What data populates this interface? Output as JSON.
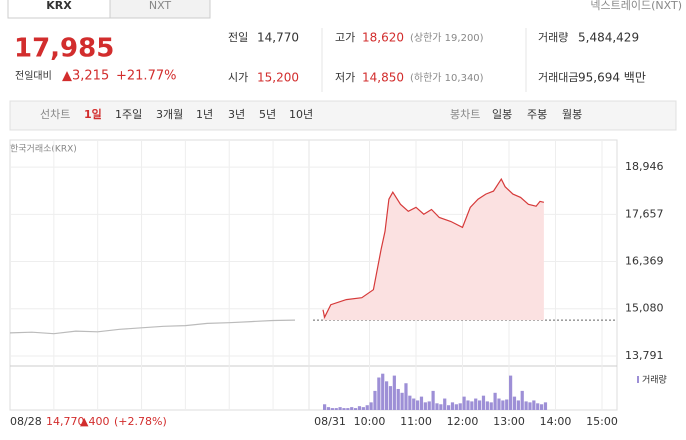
{
  "tabs": [
    "KRX",
    "NXT"
  ],
  "nxt_link": "넥스트레이드(NXT)",
  "quote": {
    "price": "17,985",
    "change_label": "전일대비",
    "change": "▲3,215",
    "rate": "+21.77%"
  },
  "table": {
    "rows": [
      [
        [
          "전일",
          "14,770",
          ""
        ],
        [
          "고가",
          "18,620",
          "(상한가 19,200)"
        ],
        [
          "거래량",
          "5,484,429",
          ""
        ]
      ],
      [
        [
          "시가",
          "15,200",
          ""
        ],
        [
          "저가",
          "14,850",
          "(하한가 10,340)"
        ],
        [
          "거래대금",
          "95,694 백만",
          ""
        ]
      ]
    ]
  },
  "toolbar": {
    "line_chart": "선차트",
    "periods": [
      "1일",
      "1주일",
      "3개월",
      "1년",
      "3년",
      "5년",
      "10년"
    ],
    "candle_chart": "봉차트",
    "candles": [
      "일봉",
      "주봉",
      "월봉"
    ]
  },
  "footer": {
    "close": "14,770",
    "change": "▲400",
    "rate": "(+2.78%)"
  },
  "chart_data": {
    "type": "line",
    "source": "한국거래소(KRX)",
    "x_dates": [
      "08/28",
      "08/31"
    ],
    "xticks": [
      "10:00",
      "11:00",
      "12:00",
      "13:00",
      "14:00",
      "15:00"
    ],
    "ylim": [
      13517,
      19686
    ],
    "yticks": [
      {
        "value": 13791,
        "label": "13,791"
      },
      {
        "value": 15080,
        "label": "15,080"
      },
      {
        "value": 16369,
        "label": "16,369"
      },
      {
        "value": 17657,
        "label": "17,657"
      },
      {
        "value": 18946,
        "label": "18,946"
      }
    ],
    "baseline": 14770,
    "grid": true,
    "series": [
      {
        "color": "#bbbbbb",
        "x": [
          "09:00",
          "09:30",
          "10:00",
          "10:30",
          "11:00",
          "11:30",
          "12:00",
          "12:30",
          "13:00",
          "13:30",
          "14:00",
          "14:30",
          "15:00",
          "15:30"
        ],
        "values": [
          14420,
          14440,
          14400,
          14470,
          14450,
          14520,
          14560,
          14600,
          14620,
          14680,
          14700,
          14730,
          14760,
          14770
        ]
      },
      {
        "color": "#d63a3a",
        "x": [
          "09:00",
          "09:02",
          "09:10",
          "09:30",
          "09:50",
          "10:05",
          "10:15",
          "10:20",
          "10:25",
          "10:30",
          "10:40",
          "10:50",
          "11:00",
          "11:10",
          "11:20",
          "11:30",
          "11:45",
          "12:00",
          "12:10",
          "12:20",
          "12:30",
          "12:40",
          "12:50",
          "12:55",
          "13:05",
          "13:15",
          "13:25",
          "13:35",
          "13:40",
          "13:45"
        ],
        "values": [
          15050,
          14850,
          15190,
          15330,
          15380,
          15600,
          16700,
          17190,
          18070,
          18260,
          17930,
          17740,
          17850,
          17660,
          17790,
          17570,
          17460,
          17300,
          17850,
          18070,
          18210,
          18290,
          18620,
          18410,
          18210,
          18120,
          17930,
          17880,
          18010,
          17985
        ]
      }
    ],
    "volume": {
      "name": "거래량",
      "color": "#9d8fd6",
      "vlim": [
        0,
        45
      ],
      "x": [
        "09:00",
        "09:05",
        "09:10",
        "09:15",
        "09:20",
        "09:25",
        "09:30",
        "09:35",
        "09:40",
        "09:45",
        "09:50",
        "09:55",
        "10:00",
        "10:05",
        "10:10",
        "10:15",
        "10:20",
        "10:25",
        "10:30",
        "10:35",
        "10:40",
        "10:45",
        "10:50",
        "10:55",
        "11:00",
        "11:05",
        "11:10",
        "11:15",
        "11:20",
        "11:25",
        "11:30",
        "11:35",
        "11:40",
        "11:45",
        "11:50",
        "11:55",
        "12:00",
        "12:05",
        "12:10",
        "12:15",
        "12:20",
        "12:25",
        "12:30",
        "12:35",
        "12:40",
        "12:45",
        "12:50",
        "12:55",
        "13:00",
        "13:05",
        "13:10",
        "13:15",
        "13:20",
        "13:25",
        "13:30",
        "13:35",
        "13:40",
        "13:45"
      ],
      "values": [
        6,
        3,
        2,
        2,
        3,
        2,
        2,
        3,
        2,
        4,
        3,
        5,
        8,
        20,
        34,
        38,
        30,
        25,
        36,
        22,
        18,
        28,
        15,
        12,
        10,
        14,
        8,
        9,
        20,
        7,
        6,
        12,
        5,
        8,
        6,
        7,
        14,
        10,
        9,
        12,
        10,
        15,
        9,
        8,
        18,
        12,
        10,
        11,
        36,
        14,
        10,
        20,
        9,
        8,
        10,
        7,
        6,
        8
      ]
    }
  }
}
